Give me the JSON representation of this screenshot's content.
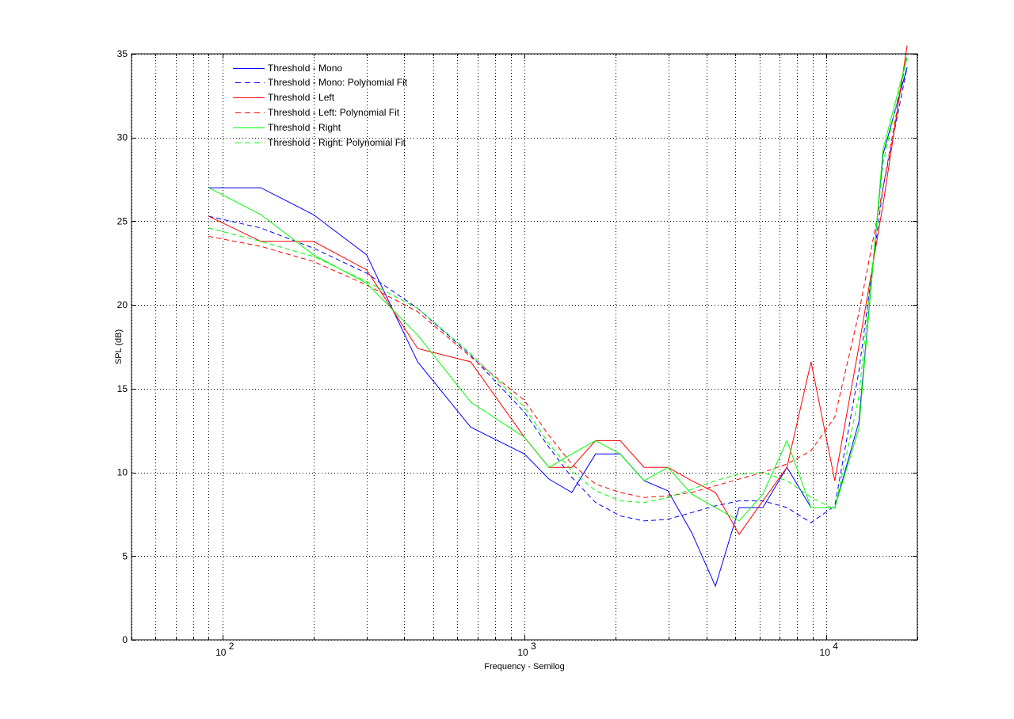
{
  "chart_data": {
    "type": "line",
    "title": "",
    "xlabel": "Frequency - Semilog",
    "ylabel": "SPL (dB)",
    "xscale": "log",
    "xlim": [
      50,
      20000
    ],
    "ylim": [
      0,
      35
    ],
    "grid": true,
    "legend_position": "upper-left (inside)",
    "x_ticks": [
      {
        "value": 100,
        "base": "10",
        "exp": "2"
      },
      {
        "value": 1000,
        "base": "10",
        "exp": "3"
      },
      {
        "value": 10000,
        "base": "10",
        "exp": "4"
      }
    ],
    "y_ticks": [
      0,
      5,
      10,
      15,
      20,
      25,
      30,
      35
    ],
    "x": [
      90,
      134,
      200,
      300,
      443,
      664,
      1000,
      1206,
      1435,
      1720,
      2075,
      2490,
      2985,
      3580,
      4290,
      5140,
      6160,
      7400,
      8890,
      10660,
      12800,
      15400,
      18500
    ],
    "series": [
      {
        "name": "Threshold - Mono",
        "color": "#0000ff",
        "dash": "solid",
        "values": [
          27.0,
          27.0,
          25.4,
          23.0,
          16.6,
          12.7,
          11.1,
          9.6,
          8.8,
          11.1,
          11.1,
          9.5,
          8.9,
          6.4,
          3.2,
          7.9,
          7.9,
          10.3,
          7.9,
          7.9,
          13.0,
          29.0,
          34.2
        ]
      },
      {
        "name": "Threshold - Mono: Polynomial Fit",
        "color": "#0000ff",
        "dash": "dashed",
        "values": [
          25.3,
          24.6,
          23.4,
          21.9,
          19.8,
          17.0,
          13.6,
          11.5,
          9.7,
          8.2,
          7.4,
          7.1,
          7.2,
          7.6,
          8.0,
          8.3,
          8.3,
          7.9,
          7.0,
          8.0,
          16.0,
          27.0,
          34.2
        ]
      },
      {
        "name": "Threshold - Left",
        "color": "#ff0000",
        "dash": "solid",
        "values": [
          25.3,
          23.8,
          23.8,
          22.1,
          17.4,
          16.6,
          12.1,
          10.3,
          10.3,
          11.9,
          11.9,
          10.3,
          10.3,
          9.5,
          8.8,
          6.3,
          8.3,
          10.3,
          16.6,
          9.5,
          17.5,
          26.0,
          35.5
        ]
      },
      {
        "name": "Threshold - Left: Polynomial Fit",
        "color": "#ff0000",
        "dash": "dashed",
        "values": [
          24.1,
          23.5,
          22.6,
          21.2,
          19.6,
          16.9,
          14.3,
          12.2,
          10.5,
          9.3,
          8.8,
          8.5,
          8.6,
          8.8,
          9.2,
          9.6,
          10.0,
          10.5,
          11.3,
          13.3,
          19.5,
          27.0,
          35.0
        ]
      },
      {
        "name": "Threshold - Right",
        "color": "#00ff00",
        "dash": "solid",
        "values": [
          27.0,
          25.4,
          23.0,
          21.3,
          18.2,
          14.2,
          12.1,
          10.3,
          11.1,
          11.9,
          11.1,
          9.5,
          10.3,
          8.7,
          7.9,
          7.1,
          8.7,
          11.9,
          7.9,
          7.9,
          12.6,
          29.3,
          34.8
        ]
      },
      {
        "name": "Threshold - Right: Polynomial Fit",
        "color": "#00ff00",
        "dash": "dashed",
        "values": [
          24.6,
          23.8,
          22.9,
          21.4,
          19.8,
          17.1,
          13.9,
          11.7,
          10.1,
          8.9,
          8.3,
          8.2,
          8.5,
          9.0,
          9.5,
          9.9,
          10.0,
          9.5,
          8.5,
          7.8,
          14.5,
          28.5,
          34.8
        ]
      }
    ]
  }
}
